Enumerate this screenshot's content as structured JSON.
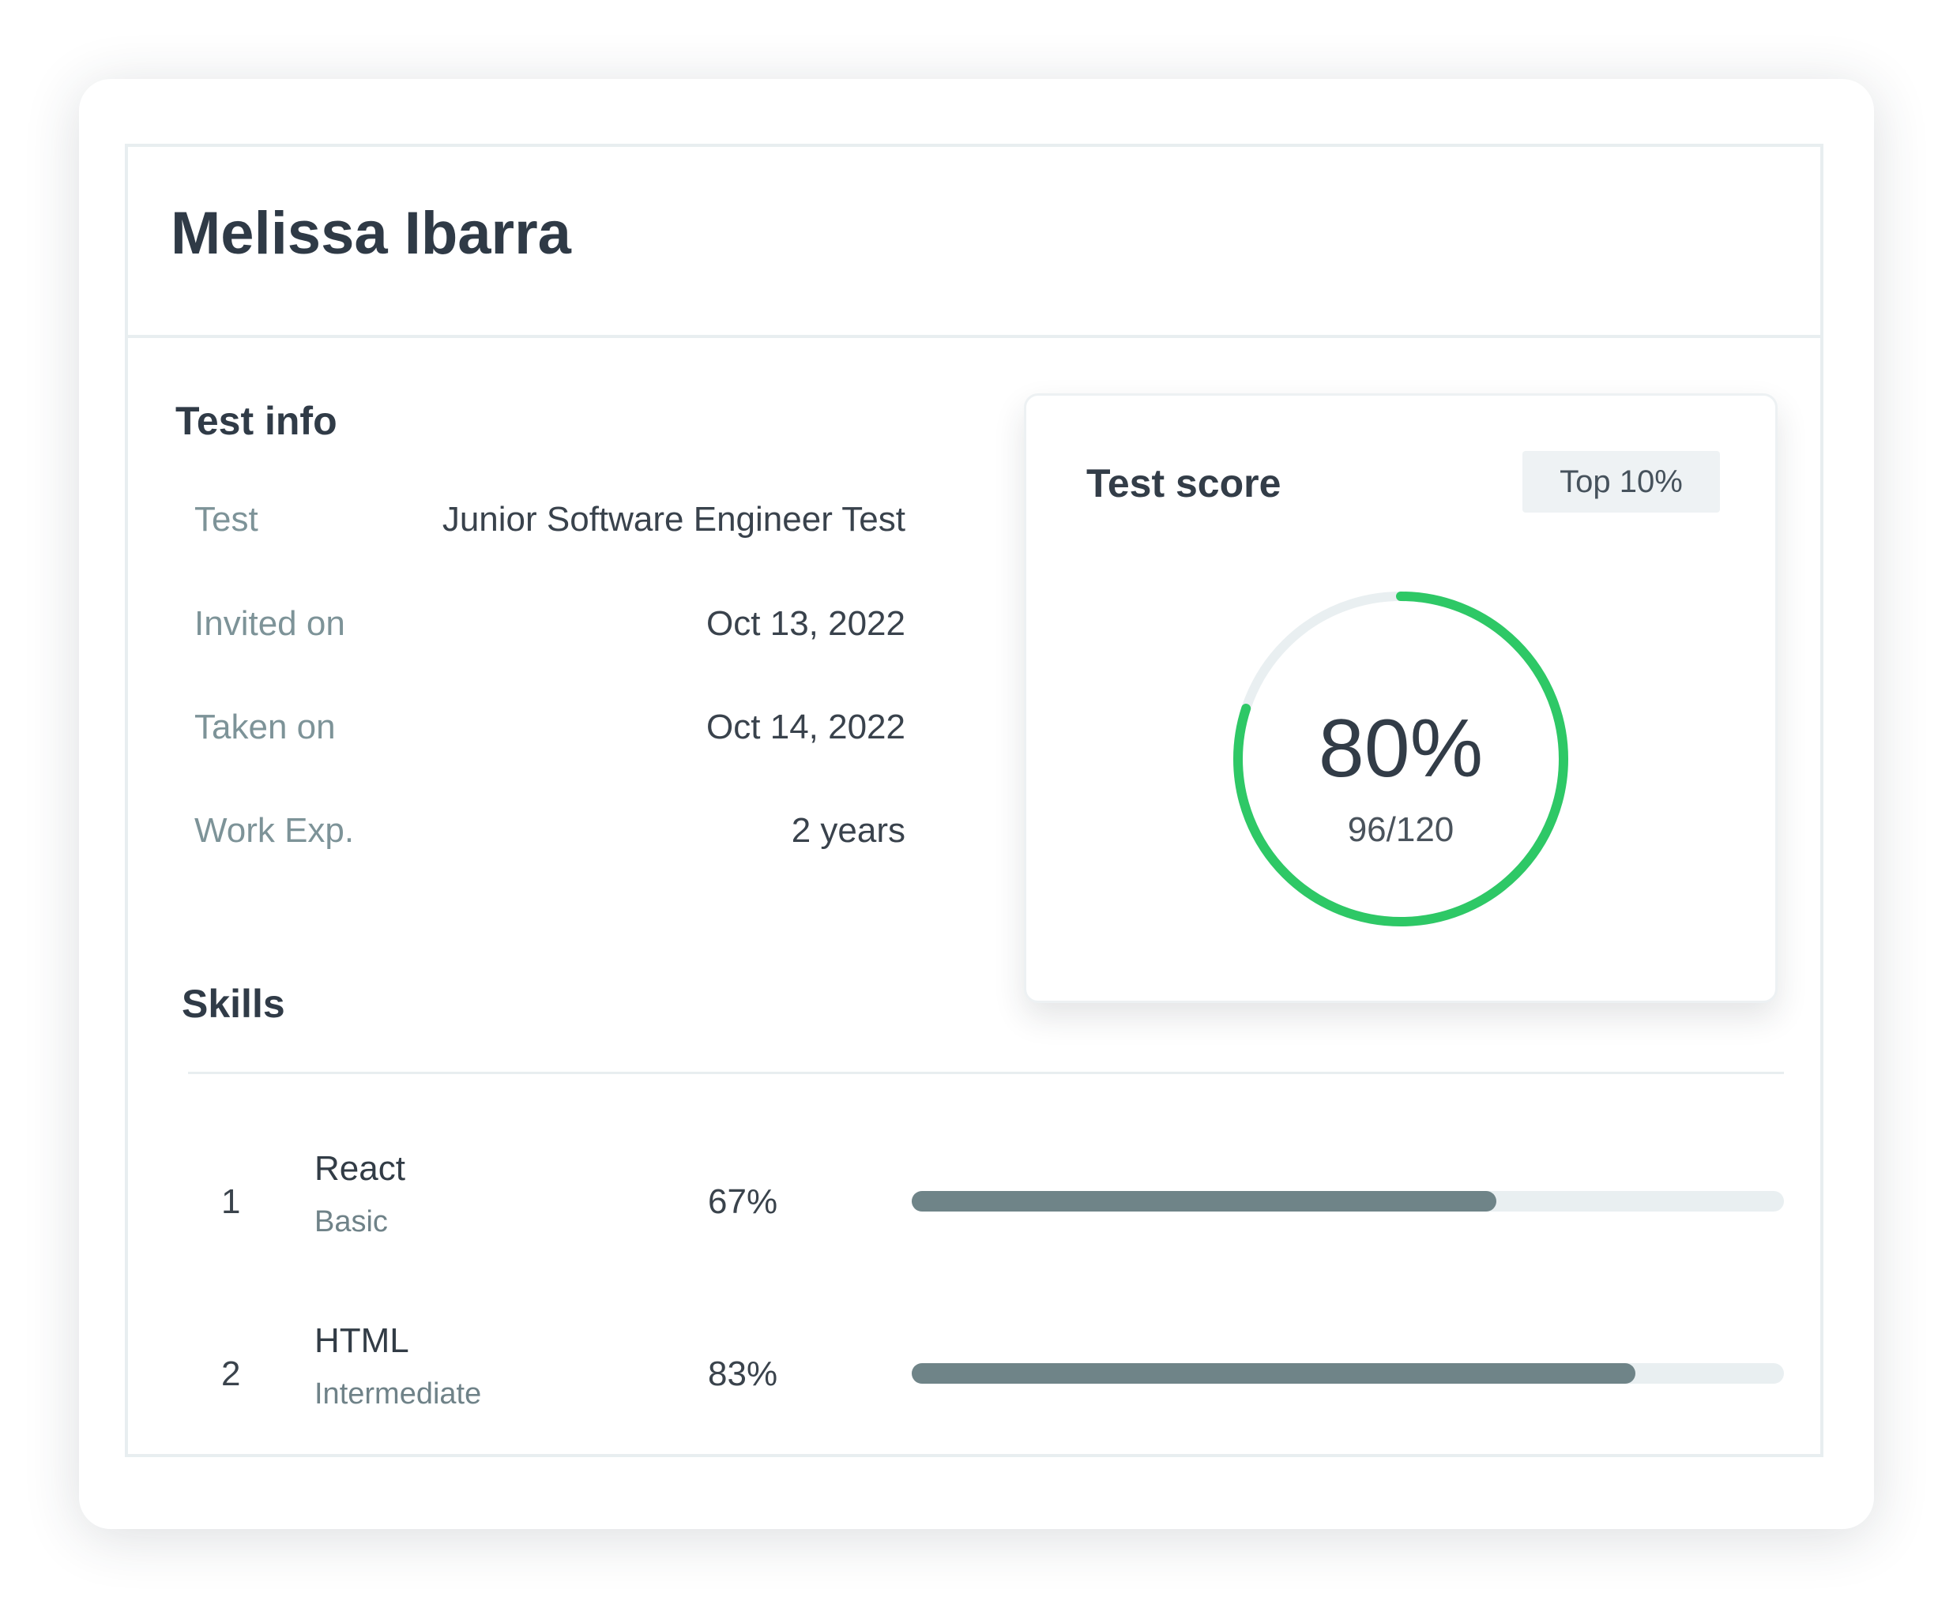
{
  "candidate": {
    "name": "Melissa Ibarra"
  },
  "test_info": {
    "title": "Test info",
    "rows": [
      {
        "label": "Test",
        "value": "Junior Software Engineer Test"
      },
      {
        "label": "Invited on",
        "value": "Oct 13, 2022"
      },
      {
        "label": "Taken on",
        "value": "Oct 14, 2022"
      },
      {
        "label": "Work Exp.",
        "value": "2 years"
      }
    ]
  },
  "score": {
    "title": "Test score",
    "badge": "Top 10%",
    "percent_label": "80%",
    "fraction_label": "96/120",
    "fraction": 0.8
  },
  "skills": {
    "title": "Skills",
    "items": [
      {
        "index": "1",
        "name": "React",
        "level": "Basic",
        "score_label": "67%",
        "fraction": 0.67
      },
      {
        "index": "2",
        "name": "HTML",
        "level": "Intermediate",
        "score_label": "83%",
        "fraction": 0.83
      }
    ]
  },
  "colors": {
    "ring_progress": "#2ec866",
    "ring_track": "#e9eff1",
    "bar_fill": "#6f8488",
    "bar_track": "#e9eff1"
  }
}
